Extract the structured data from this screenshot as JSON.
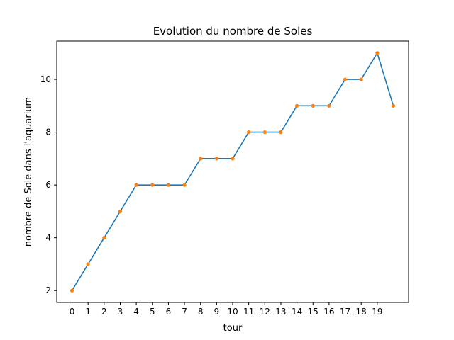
{
  "chart_data": {
    "type": "line",
    "title": "Evolution du nombre de Soles",
    "xlabel": "tour",
    "ylabel": "nombre de Sole dans l'aquarium",
    "x": [
      0,
      1,
      2,
      3,
      4,
      5,
      6,
      7,
      8,
      9,
      10,
      11,
      12,
      13,
      14,
      15,
      16,
      17,
      18,
      19,
      20
    ],
    "series": [
      {
        "values": [
          2,
          3,
          4,
          5,
          6,
          6,
          6,
          6,
          7,
          7,
          7,
          8,
          8,
          8,
          9,
          9,
          9,
          10,
          10,
          11,
          9
        ]
      }
    ],
    "xticks": [
      0,
      1,
      2,
      3,
      4,
      5,
      6,
      7,
      8,
      9,
      10,
      11,
      12,
      13,
      14,
      15,
      16,
      17,
      18,
      19
    ],
    "yticks": [
      2,
      4,
      6,
      8,
      10
    ],
    "xlim": [
      -0.95,
      20.95
    ],
    "ylim": [
      1.55,
      11.45
    ],
    "line_color": "#1f77b4",
    "marker_color": "#ff7f0e",
    "grid": false,
    "legend": "none"
  }
}
